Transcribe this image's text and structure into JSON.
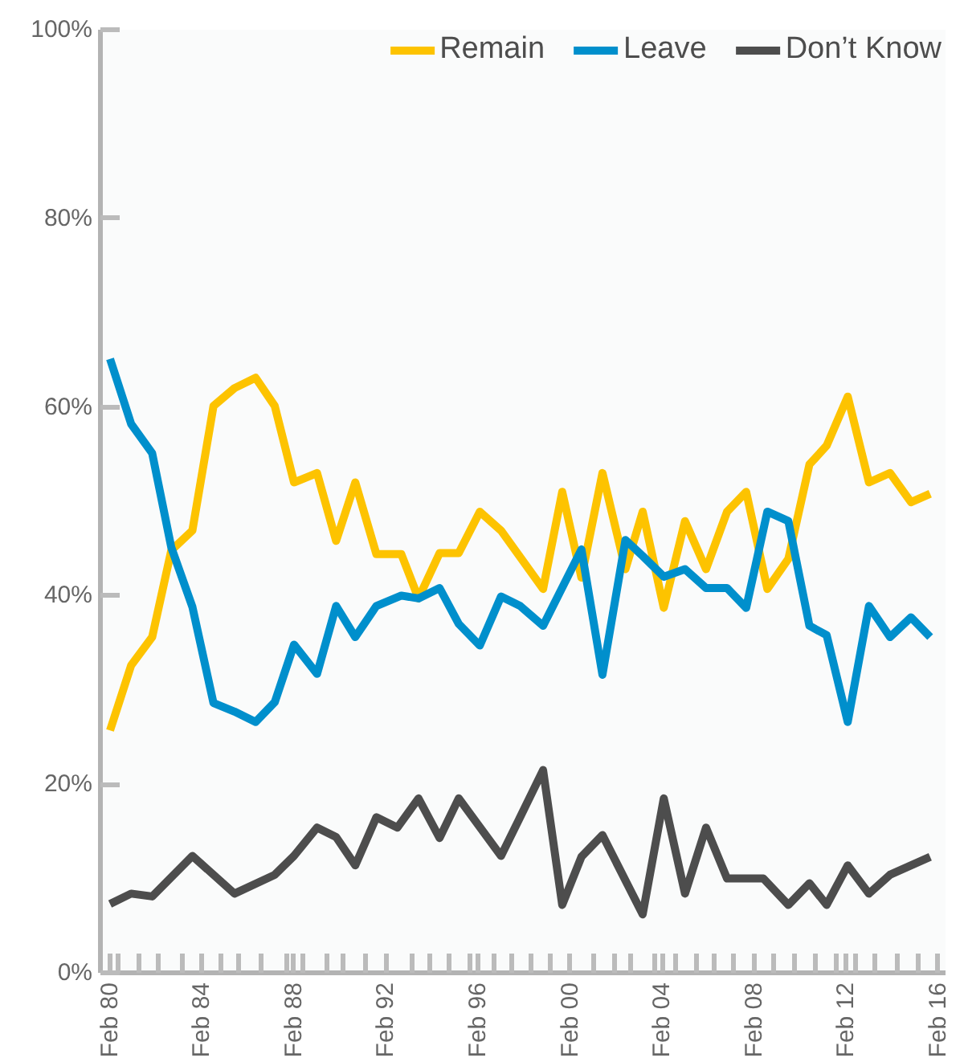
{
  "chart_data": {
    "type": "line",
    "xlim": [
      "1979-09",
      "2016-06"
    ],
    "ylim": [
      0,
      100
    ],
    "yticks": [
      {
        "value": 0,
        "label": "0%"
      },
      {
        "value": 20,
        "label": "20%"
      },
      {
        "value": 40,
        "label": "40%"
      },
      {
        "value": 60,
        "label": "60%"
      },
      {
        "value": 80,
        "label": "80%"
      },
      {
        "value": 100,
        "label": "100%"
      }
    ],
    "xticks": [
      {
        "value": "1980-02",
        "label": "Feb 80"
      },
      {
        "value": "1984-02",
        "label": "Feb 84"
      },
      {
        "value": "1988-02",
        "label": "Feb 88"
      },
      {
        "value": "1992-02",
        "label": "Feb 92"
      },
      {
        "value": "1996-02",
        "label": "Feb 96"
      },
      {
        "value": "2000-02",
        "label": "Feb 00"
      },
      {
        "value": "2004-02",
        "label": "Feb 04"
      },
      {
        "value": "2008-02",
        "label": "Feb 08"
      },
      {
        "value": "2012-02",
        "label": "Feb 12"
      },
      {
        "value": "2016-02",
        "label": "Feb 16"
      },
      {
        "value": "1980-06",
        "label": null
      },
      {
        "value": "1981-05",
        "label": null
      },
      {
        "value": "1982-03",
        "label": null
      },
      {
        "value": "1983-04",
        "label": null
      },
      {
        "value": "1984-12",
        "label": null
      },
      {
        "value": "1985-09",
        "label": null
      },
      {
        "value": "1986-09",
        "label": null
      },
      {
        "value": "1987-10",
        "label": null
      },
      {
        "value": "1988-07",
        "label": null
      },
      {
        "value": "1989-07",
        "label": null
      },
      {
        "value": "1990-04",
        "label": null
      },
      {
        "value": "1991-03",
        "label": null
      },
      {
        "value": "1993-04",
        "label": null
      },
      {
        "value": "1994-01",
        "label": null
      },
      {
        "value": "1994-11",
        "label": null
      },
      {
        "value": "1995-10",
        "label": null
      },
      {
        "value": "1996-10",
        "label": null
      },
      {
        "value": "1997-08",
        "label": null
      },
      {
        "value": "1998-06",
        "label": null
      },
      {
        "value": "1999-04",
        "label": null
      },
      {
        "value": "2001-02",
        "label": null
      },
      {
        "value": "2002-01",
        "label": null
      },
      {
        "value": "2002-10",
        "label": null
      },
      {
        "value": "2003-10",
        "label": null
      },
      {
        "value": "2004-09",
        "label": null
      },
      {
        "value": "2005-08",
        "label": null
      },
      {
        "value": "2006-05",
        "label": null
      },
      {
        "value": "2007-03",
        "label": null
      },
      {
        "value": "2008-12",
        "label": null
      },
      {
        "value": "2009-11",
        "label": null
      },
      {
        "value": "2010-10",
        "label": null
      },
      {
        "value": "2011-09",
        "label": null
      },
      {
        "value": "2012-07",
        "label": null
      },
      {
        "value": "2013-05",
        "label": null
      },
      {
        "value": "2014-05",
        "label": null
      },
      {
        "value": "2015-04",
        "label": null
      }
    ],
    "grid": false,
    "legend": "top right",
    "marker": "none",
    "line_style": "solid",
    "series": [
      {
        "name": "Remain",
        "color": "#fdc300",
        "x": [
          "1980-02",
          "1981-01",
          "1981-12",
          "1982-10",
          "1983-09",
          "1984-08",
          "1985-07",
          "1986-06",
          "1987-04",
          "1988-02",
          "1989-02",
          "1989-12",
          "1990-10",
          "1991-09",
          "1992-10",
          "1993-07",
          "1994-06",
          "1995-04",
          "1996-03",
          "1997-02",
          "1998-12",
          "1999-10",
          "2000-08",
          "2001-07",
          "2002-07",
          "2003-04",
          "2004-03",
          "2005-02",
          "2006-01",
          "2006-12",
          "2007-10",
          "2008-09",
          "2009-08",
          "2010-07",
          "2011-04",
          "2012-03",
          "2013-02",
          "2014-01",
          "2014-12",
          "2015-10"
        ],
        "values": [
          25.7,
          32.6,
          35.6,
          44.8,
          46.9,
          60.1,
          62.0,
          63.1,
          60.1,
          52.0,
          53.0,
          45.8,
          52.0,
          44.4,
          44.4,
          39.7,
          44.5,
          44.5,
          48.9,
          46.9,
          40.7,
          51.0,
          41.9,
          53.0,
          42.8,
          48.9,
          38.7,
          47.9,
          42.8,
          48.9,
          51.0,
          40.7,
          43.9,
          53.9,
          55.9,
          61.1,
          52.0,
          53.0,
          49.9,
          50.8
        ]
      },
      {
        "name": "Leave",
        "color": "#008fcc",
        "x": [
          "1980-02",
          "1981-01",
          "1981-12",
          "1982-10",
          "1983-09",
          "1984-08",
          "1985-07",
          "1986-06",
          "1987-04",
          "1988-02",
          "1989-02",
          "1989-12",
          "1990-10",
          "1991-09",
          "1992-10",
          "1993-07",
          "1994-06",
          "1995-04",
          "1996-03",
          "1997-02",
          "1997-12",
          "1998-12",
          "2000-08",
          "2001-07",
          "2002-07",
          "2003-04",
          "2004-03",
          "2005-02",
          "2006-01",
          "2006-12",
          "2007-10",
          "2008-09",
          "2009-08",
          "2010-07",
          "2011-04",
          "2012-03",
          "2013-02",
          "2014-01",
          "2014-12",
          "2015-10"
        ],
        "values": [
          65.1,
          58.2,
          55.1,
          45.1,
          38.8,
          28.6,
          27.7,
          26.6,
          28.7,
          34.8,
          31.7,
          38.9,
          35.6,
          38.9,
          40.0,
          39.7,
          40.8,
          37.0,
          34.7,
          39.9,
          38.9,
          36.8,
          44.9,
          31.6,
          45.9,
          44.2,
          42.0,
          42.8,
          40.8,
          40.8,
          38.7,
          48.9,
          47.9,
          36.8,
          35.8,
          26.6,
          38.9,
          35.6,
          37.7,
          35.6
        ]
      },
      {
        "name": "Don’t Know",
        "color": "#4d4d4d",
        "x": [
          "1980-02",
          "1981-01",
          "1981-12",
          "1983-09",
          "1985-07",
          "1987-04",
          "1988-02",
          "1989-02",
          "1989-12",
          "1990-10",
          "1991-09",
          "1992-08",
          "1993-07",
          "1994-06",
          "1995-04",
          "1997-02",
          "1997-12",
          "1998-12",
          "1999-10",
          "2000-08",
          "2001-07",
          "2003-04",
          "2004-03",
          "2005-02",
          "2006-01",
          "2006-12",
          "2007-10",
          "2008-07",
          "2009-08",
          "2010-07",
          "2011-04",
          "2012-03",
          "2013-02",
          "2014-01",
          "2015-10"
        ],
        "values": [
          7.3,
          8.4,
          8.1,
          12.4,
          8.4,
          10.4,
          12.4,
          15.4,
          14.4,
          11.4,
          16.5,
          15.4,
          18.5,
          14.3,
          18.5,
          12.4,
          16.5,
          21.5,
          7.2,
          12.3,
          14.6,
          6.2,
          18.5,
          8.4,
          15.4,
          10.0,
          10.0,
          10.0,
          7.2,
          9.5,
          7.2,
          11.4,
          8.4,
          10.4,
          12.3
        ]
      }
    ]
  }
}
